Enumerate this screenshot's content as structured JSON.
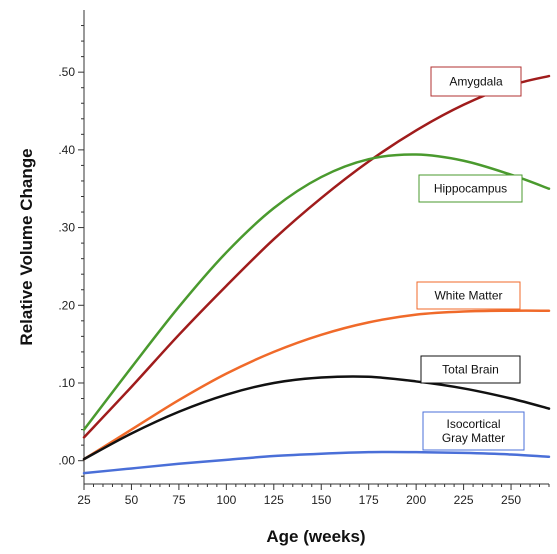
{
  "chart_data": {
    "type": "line",
    "title": "",
    "xlabel": "Age (weeks)",
    "ylabel": "Relative Volume Change",
    "xlim": [
      25,
      270
    ],
    "ylim": [
      -0.03,
      0.58
    ],
    "xticks": [
      25,
      50,
      75,
      100,
      125,
      150,
      175,
      200,
      225,
      250
    ],
    "xtick_labels": [
      "25",
      "50",
      "75",
      "100",
      "125",
      "150",
      "175",
      "200",
      "225",
      "250"
    ],
    "yticks": [
      0.0,
      0.1,
      0.2,
      0.3,
      0.4,
      0.5
    ],
    "ytick_labels": [
      ".00",
      ".10",
      ".20",
      ".30",
      ".40",
      ".50"
    ],
    "grid": false,
    "legend": "inline-boxed-labels",
    "x": [
      25,
      50,
      75,
      100,
      125,
      150,
      175,
      200,
      225,
      250,
      270
    ],
    "series": [
      {
        "name": "Amygdala",
        "color": "#a01c1c",
        "values": [
          0.03,
          0.095,
          0.162,
          0.225,
          0.285,
          0.338,
          0.385,
          0.425,
          0.458,
          0.483,
          0.495
        ]
      },
      {
        "name": "Hippocampus",
        "color": "#4a9a2e",
        "values": [
          0.04,
          0.12,
          0.198,
          0.268,
          0.325,
          0.365,
          0.388,
          0.394,
          0.386,
          0.368,
          0.35
        ]
      },
      {
        "name": "White Matter",
        "color": "#f06a2a",
        "values": [
          0.002,
          0.04,
          0.078,
          0.112,
          0.14,
          0.162,
          0.178,
          0.188,
          0.192,
          0.193,
          0.193
        ]
      },
      {
        "name": "Total Brain",
        "color": "#111111",
        "values": [
          0.002,
          0.035,
          0.063,
          0.085,
          0.1,
          0.107,
          0.108,
          0.102,
          0.093,
          0.08,
          0.067
        ]
      },
      {
        "name": "Isocortical Gray Matter",
        "color": "#4a6fd8",
        "values": [
          -0.016,
          -0.01,
          -0.004,
          0.001,
          0.006,
          0.009,
          0.011,
          0.011,
          0.01,
          0.008,
          0.005
        ]
      }
    ],
    "labels": [
      {
        "series": 0,
        "lines": [
          "Amygdala"
        ],
        "border_color": "#b23030"
      },
      {
        "series": 1,
        "lines": [
          "Hippocampus"
        ],
        "border_color": "#4a9a2e"
      },
      {
        "series": 2,
        "lines": [
          "White Matter"
        ],
        "border_color": "#f06a2a"
      },
      {
        "series": 3,
        "lines": [
          "Total Brain"
        ],
        "border_color": "#111111"
      },
      {
        "series": 4,
        "lines": [
          "Isocortical",
          "Gray Matter"
        ],
        "border_color": "#4a6fd8"
      }
    ]
  }
}
